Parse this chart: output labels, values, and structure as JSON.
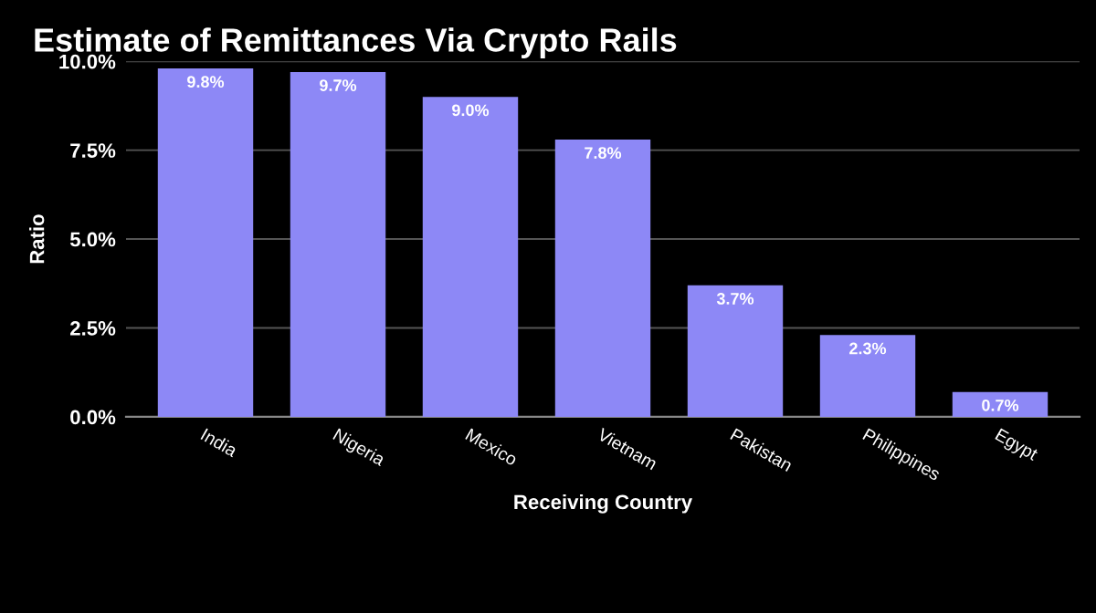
{
  "chart_data": {
    "type": "bar",
    "title": "Estimate of Remittances Via Crypto Rails",
    "xlabel": "Receiving Country",
    "ylabel": "Ratio",
    "categories": [
      "India",
      "Nigeria",
      "Mexico",
      "Vietnam",
      "Pakistan",
      "Philippines",
      "Egypt"
    ],
    "values": [
      9.8,
      9.7,
      9.0,
      7.8,
      3.7,
      2.3,
      0.7
    ],
    "value_labels": [
      "9.8%",
      "9.7%",
      "9.0%",
      "7.8%",
      "3.7%",
      "2.3%",
      "0.7%"
    ],
    "color": "#8d88f6",
    "ylim": [
      0,
      10
    ],
    "yticks": [
      {
        "value": 0,
        "label": "0.0%"
      },
      {
        "value": 2.5,
        "label": "2.5%"
      },
      {
        "value": 5,
        "label": "5.0%"
      },
      {
        "value": 7.5,
        "label": "7.5%"
      },
      {
        "value": 10,
        "label": "10.0%"
      }
    ],
    "grid": "y",
    "legend": false
  }
}
